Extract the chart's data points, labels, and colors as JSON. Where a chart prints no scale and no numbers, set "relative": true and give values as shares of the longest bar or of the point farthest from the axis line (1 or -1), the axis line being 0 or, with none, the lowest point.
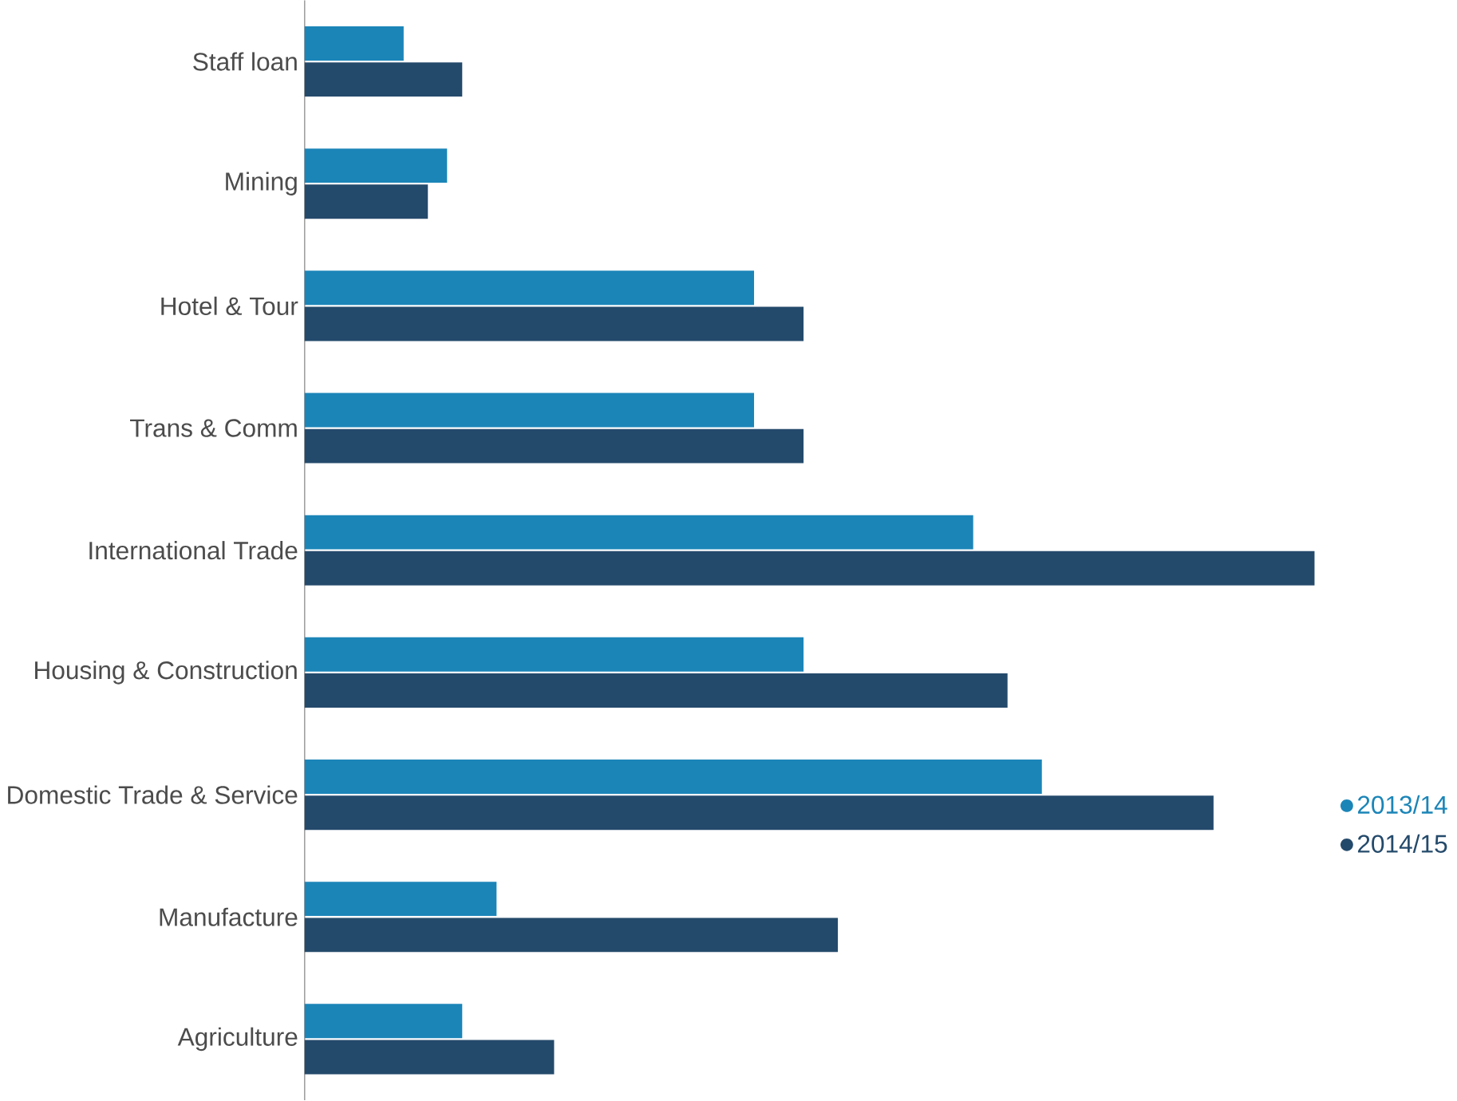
{
  "chart_data": {
    "type": "bar",
    "orientation": "horizontal",
    "relative": true,
    "legend": "right",
    "categories": [
      "Staff loan",
      "Mining",
      "Hotel & Tour",
      "Trans & Comm",
      "International Trade",
      "Housing & Construction",
      "Domestic Trade & Service",
      "Manufacture",
      "Agriculture"
    ],
    "series": [
      {
        "name": "2013/14",
        "color": "#1b85b8",
        "values": [
          0.098,
          0.141,
          0.445,
          0.445,
          0.662,
          0.494,
          0.73,
          0.19,
          0.156
        ]
      },
      {
        "name": "2014/15",
        "color": "#244a6b",
        "values": [
          0.156,
          0.122,
          0.494,
          0.494,
          1,
          0.696,
          0.9,
          0.528,
          0.247
        ]
      }
    ]
  }
}
